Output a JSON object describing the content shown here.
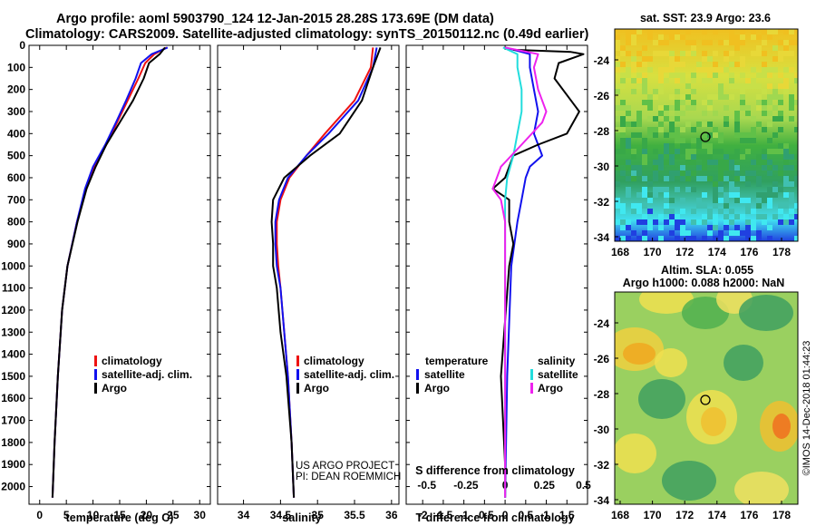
{
  "header": {
    "title_line1": "Argo profile: aoml 5903790_124 12-Jan-2015 28.28S 173.69E (DM data)",
    "title_line2": "Climatology: CARS2009. Satellite-adjusted climatology: synTS_20150112.nc (0.49d earlier)"
  },
  "colors": {
    "climatology": "#ee1111",
    "satellite": "#1111ee",
    "argo": "#000000",
    "sat_salinity": "#22dddd",
    "argo_salinity": "#ee22ee"
  },
  "chart_data": [
    {
      "type": "line",
      "xlabel": "temperature (deg C)",
      "xticks": [
        "0",
        "5",
        "10",
        "15",
        "20",
        "25",
        "30"
      ],
      "xlim": [
        -2,
        32
      ],
      "ylim": [
        2080,
        0
      ],
      "yticks": [
        "0",
        "100",
        "200",
        "300",
        "400",
        "500",
        "600",
        "700",
        "800",
        "900",
        "1000",
        "1100",
        "1200",
        "1300",
        "1400",
        "1500",
        "1600",
        "1700",
        "1800",
        "1900",
        "2000"
      ],
      "legend": [
        "climatology",
        "satellite-adj. clim.",
        "Argo"
      ],
      "series": [
        {
          "name": "climatology",
          "color": "#ee1111",
          "depth": [
            10,
            40,
            80,
            150,
            250,
            350,
            450,
            550,
            650,
            800,
            1000,
            1200,
            1500,
            1800,
            2050
          ],
          "values": [
            23.8,
            21.5,
            19.8,
            18.5,
            16.5,
            14.5,
            12.5,
            10.2,
            8.6,
            7.0,
            5.2,
            4.2,
            3.4,
            2.8,
            2.4
          ]
        },
        {
          "name": "satellite-adj. clim.",
          "color": "#1111ee",
          "depth": [
            10,
            40,
            80,
            150,
            250,
            350,
            450,
            550,
            650,
            800,
            1000,
            1200,
            1500,
            1800,
            2050
          ],
          "values": [
            24.0,
            21.0,
            19.0,
            18.0,
            16.2,
            14.3,
            12.3,
            10.0,
            8.5,
            7.0,
            5.2,
            4.2,
            3.4,
            2.8,
            2.4
          ]
        },
        {
          "name": "Argo",
          "color": "#000000",
          "depth": [
            10,
            40,
            80,
            150,
            250,
            350,
            450,
            550,
            650,
            800,
            1000,
            1200,
            1500,
            1800,
            2050
          ],
          "values": [
            23.5,
            22.5,
            20.5,
            19.5,
            17.5,
            15.0,
            12.5,
            10.5,
            8.8,
            7.1,
            5.2,
            4.2,
            3.4,
            2.8,
            2.4
          ]
        }
      ]
    },
    {
      "type": "line",
      "xlabel": "salinity",
      "xticks": [
        "34",
        "34.5",
        "35",
        "35.5",
        "36"
      ],
      "xlim": [
        33.65,
        36.1
      ],
      "ylim": [
        2080,
        0
      ],
      "legend": [
        "climatology",
        "satellite-adj. clim.",
        "Argo"
      ],
      "annotation_line1": "US ARGO PROJECT",
      "annotation_line2": "PI: DEAN ROEMMICH",
      "series": [
        {
          "name": "climatology",
          "color": "#ee1111",
          "depth": [
            10,
            100,
            250,
            400,
            500,
            600,
            700,
            800,
            900,
            1000,
            1100,
            1300,
            1500,
            1800,
            2050
          ],
          "values": [
            35.75,
            35.72,
            35.5,
            35.1,
            34.85,
            34.62,
            34.5,
            34.45,
            34.45,
            34.47,
            34.5,
            34.55,
            34.6,
            34.65,
            34.68
          ]
        },
        {
          "name": "satellite-adj. clim.",
          "color": "#1111ee",
          "depth": [
            10,
            100,
            250,
            400,
            500,
            600,
            700,
            800,
            900,
            1000,
            1100,
            1300,
            1500,
            1800,
            2050
          ],
          "values": [
            35.8,
            35.75,
            35.55,
            35.15,
            34.85,
            34.6,
            34.48,
            34.43,
            34.43,
            34.45,
            34.5,
            34.55,
            34.6,
            34.65,
            34.68
          ]
        },
        {
          "name": "Argo",
          "color": "#000000",
          "depth": [
            10,
            100,
            250,
            400,
            500,
            600,
            700,
            800,
            900,
            1000,
            1100,
            1300,
            1500,
            1800,
            2050
          ],
          "values": [
            35.85,
            35.75,
            35.6,
            35.3,
            34.9,
            34.55,
            34.4,
            34.38,
            34.4,
            34.4,
            34.45,
            34.5,
            34.58,
            34.65,
            34.68
          ]
        }
      ]
    },
    {
      "type": "line",
      "xlabel": "T difference from climatology",
      "xlabel2": "S difference from climatology",
      "xticks": [
        "-2",
        "-1.5",
        "-1",
        "-0.5",
        "0",
        "0.5",
        "1",
        "1.5"
      ],
      "xticks_top": [
        "-0.5",
        "-0.25",
        "0",
        "0.25",
        "0.5"
      ],
      "xlim": [
        -2.4,
        2.0
      ],
      "ylim": [
        2080,
        0
      ],
      "legend_temperature": [
        "temperature",
        "satellite",
        "Argo"
      ],
      "legend_salinity": [
        "salinity",
        "satellite",
        "Argo"
      ],
      "series": [
        {
          "name": "satellite",
          "color": "#1111ee",
          "depth": [
            10,
            40,
            100,
            200,
            300,
            400,
            500,
            550,
            600,
            700,
            800,
            1000,
            1500,
            2050
          ],
          "values": [
            0.0,
            0.6,
            0.6,
            0.7,
            0.8,
            0.7,
            0.9,
            0.6,
            0.5,
            0.4,
            0.3,
            0.15,
            0.05,
            0.0
          ]
        },
        {
          "name": "Argo",
          "color": "#000000",
          "depth": [
            20,
            30,
            40,
            80,
            150,
            250,
            300,
            400,
            450,
            500,
            600,
            650,
            700,
            800,
            900,
            1000,
            1500,
            1900,
            2050
          ],
          "values": [
            0.2,
            1.6,
            1.9,
            1.3,
            1.2,
            1.6,
            1.8,
            1.5,
            0.8,
            0.2,
            0.0,
            -0.3,
            0.1,
            0.1,
            0.2,
            0.1,
            -0.1,
            0.0,
            0.0
          ]
        },
        {
          "name": "satellite",
          "color": "#22dddd",
          "depth": [
            10,
            40,
            100,
            200,
            300,
            400,
            500,
            600,
            700,
            800,
            1000,
            1500,
            2050
          ],
          "values": [
            -0.05,
            0.3,
            0.3,
            0.4,
            0.4,
            0.3,
            0.2,
            0.05,
            0.0,
            0.0,
            0.0,
            0.0,
            0.0
          ]
        },
        {
          "name": "Argo",
          "color": "#ee22ee",
          "depth": [
            10,
            40,
            100,
            200,
            300,
            350,
            450,
            550,
            650,
            700,
            800,
            1000,
            1500,
            2050
          ],
          "values": [
            0.0,
            0.8,
            0.7,
            0.8,
            1.0,
            0.9,
            0.4,
            -0.1,
            -0.3,
            -0.1,
            0.0,
            0.0,
            0.0,
            0.0
          ]
        }
      ]
    }
  ],
  "map_sst": {
    "title": "sat. SST: 23.9 Argo: 23.6",
    "yticks": [
      "-24",
      "-26",
      "-28",
      "-30",
      "-32",
      "-34"
    ],
    "xticks": [
      "168",
      "170",
      "172",
      "174",
      "176",
      "178"
    ]
  },
  "map_sla": {
    "title1": "Altim. SLA: 0.055",
    "title2": "Argo h1000: 0.088 h2000: NaN",
    "yticks": [
      "-24",
      "-26",
      "-28",
      "-30",
      "-32",
      "-34"
    ],
    "xticks": [
      "168",
      "170",
      "172",
      "174",
      "176",
      "178"
    ]
  },
  "credit": "©IMOS 14-Dec-2018 01:44:23"
}
